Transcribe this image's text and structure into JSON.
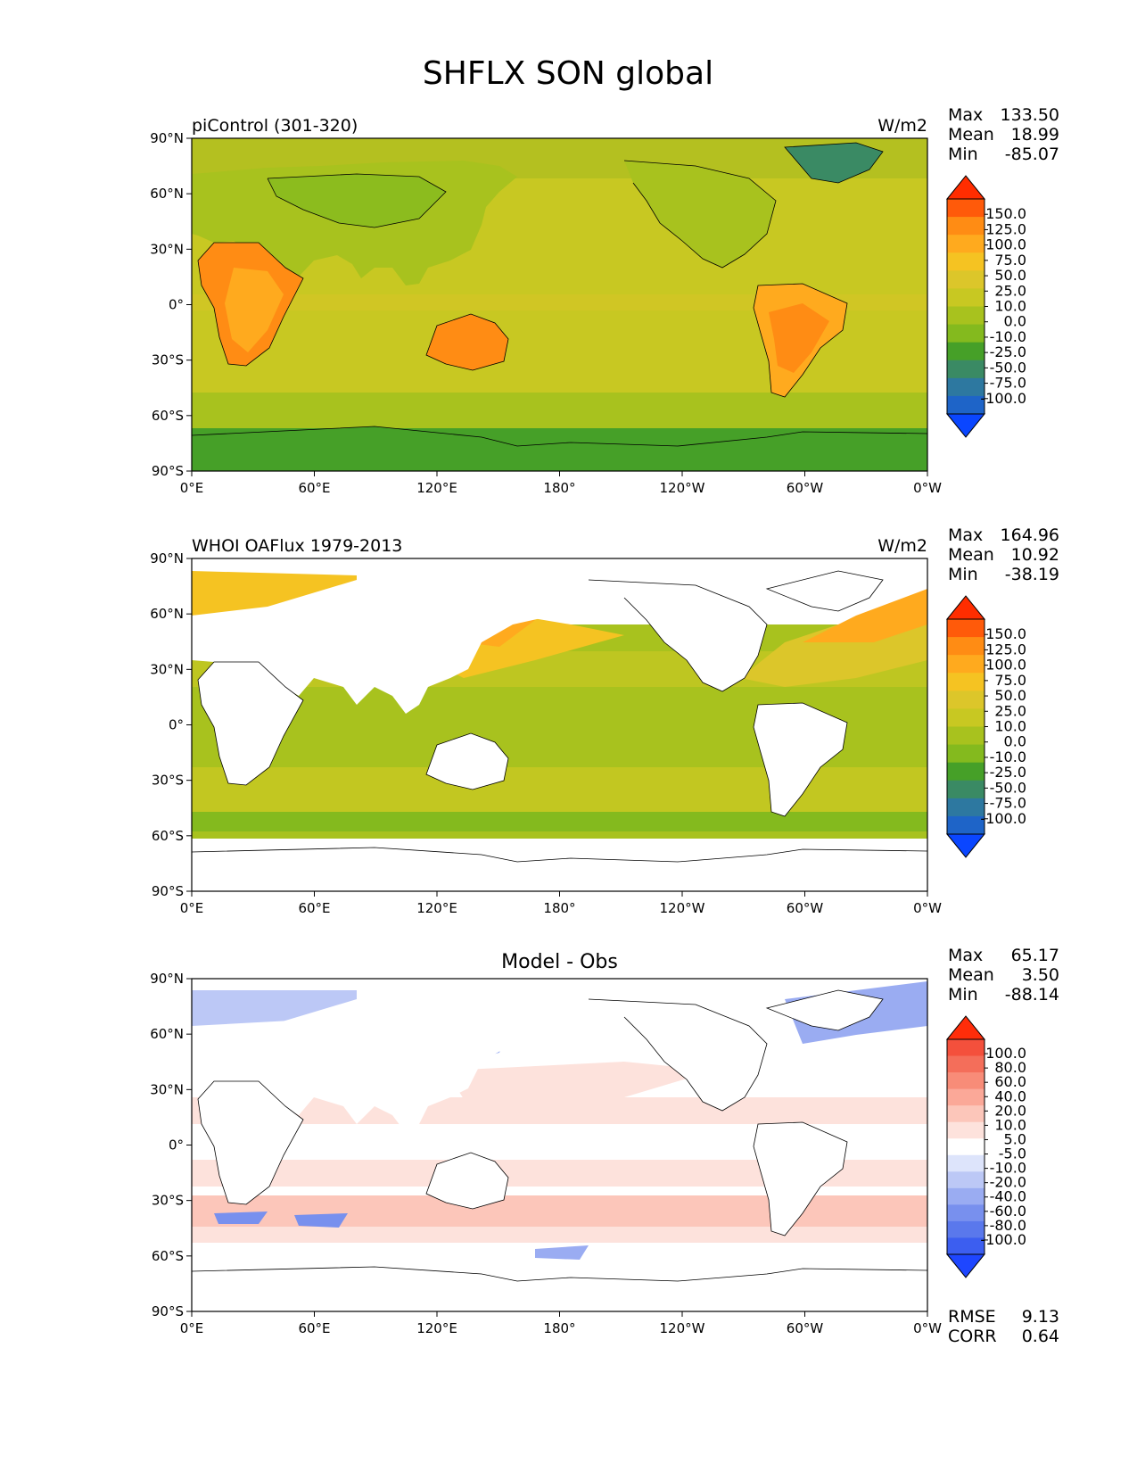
{
  "title": "SHFLX SON global",
  "lat_ticks": [
    "90°N",
    "60°N",
    "30°N",
    "0°",
    "30°S",
    "60°S",
    "90°S"
  ],
  "lon_ticks": [
    "0°E",
    "60°E",
    "120°E",
    "180°",
    "120°W",
    "60°W",
    "0°W"
  ],
  "panels": [
    {
      "left_label": "piControl (301-320)",
      "center_label": "",
      "units": "W/m2",
      "stats": [
        {
          "label": "Max",
          "value": "133.50"
        },
        {
          "label": "Mean",
          "value": "18.99"
        },
        {
          "label": "Min",
          "value": "-85.07"
        }
      ],
      "colorbar": {
        "labels": [
          "150.0",
          "125.0",
          "100.0",
          "75.0",
          "50.0",
          "25.0",
          "10.0",
          "0.0",
          "-10.0",
          "-25.0",
          "-50.0",
          "-75.0",
          "-100.0"
        ],
        "colors": [
          "#ff2d00",
          "#ff5a0a",
          "#ff8c14",
          "#ffaa1e",
          "#f5c322",
          "#dcc62a",
          "#c8c822",
          "#a8c21e",
          "#84ba1e",
          "#46a028",
          "#3a8a64",
          "#2d78a0",
          "#1e64c8",
          "#0a46ff"
        ]
      },
      "field": "model"
    },
    {
      "left_label": "WHOI OAFlux 1979-2013",
      "center_label": "",
      "units": "W/m2",
      "stats": [
        {
          "label": "Max",
          "value": "164.96"
        },
        {
          "label": "Mean",
          "value": "10.92"
        },
        {
          "label": "Min",
          "value": "-38.19"
        }
      ],
      "colorbar": {
        "labels": [
          "150.0",
          "125.0",
          "100.0",
          "75.0",
          "50.0",
          "25.0",
          "10.0",
          "0.0",
          "-10.0",
          "-25.0",
          "-50.0",
          "-75.0",
          "-100.0"
        ],
        "colors": [
          "#ff2d00",
          "#ff5a0a",
          "#ff8c14",
          "#ffaa1e",
          "#f5c322",
          "#dcc62a",
          "#c8c822",
          "#a8c21e",
          "#84ba1e",
          "#46a028",
          "#3a8a64",
          "#2d78a0",
          "#1e64c8",
          "#0a46ff"
        ]
      },
      "field": "obs"
    },
    {
      "left_label": "",
      "center_label": "Model - Obs",
      "units": "",
      "stats": [
        {
          "label": "Max",
          "value": "65.17"
        },
        {
          "label": "Mean",
          "value": "3.50"
        },
        {
          "label": "Min",
          "value": "-88.14"
        }
      ],
      "colorbar": {
        "labels": [
          "100.0",
          "80.0",
          "60.0",
          "40.0",
          "20.0",
          "10.0",
          "5.0",
          "-5.0",
          "-10.0",
          "-20.0",
          "-40.0",
          "-60.0",
          "-80.0",
          "-100.0"
        ],
        "colors": [
          "#ff2d0a",
          "#f4503c",
          "#f46e5a",
          "#f88c78",
          "#fba898",
          "#fcc6ba",
          "#fde2dc",
          "#ffffff",
          "#dde4fb",
          "#bcc8f6",
          "#9aacf2",
          "#7890ee",
          "#5a78ec",
          "#3c5ef0",
          "#1e46ff"
        ]
      },
      "extra_stats": [
        {
          "label": "RMSE",
          "value": "9.13"
        },
        {
          "label": "CORR",
          "value": "0.64"
        }
      ],
      "field": "diff"
    }
  ]
}
